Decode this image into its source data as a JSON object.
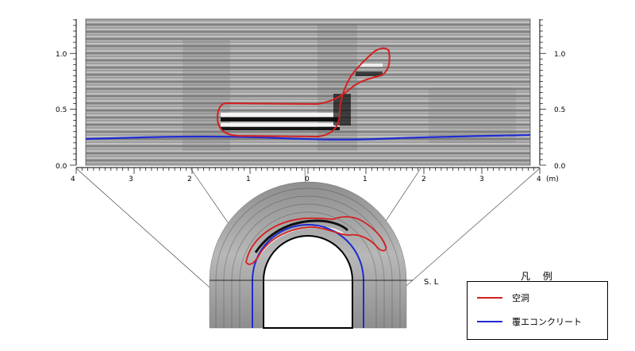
{
  "panel": {
    "y_ticks": [
      "0.0",
      "0.5",
      "1.0"
    ],
    "x_ticks": [
      "4",
      "3",
      "2",
      "1",
      "0",
      "1",
      "2",
      "3",
      "4"
    ],
    "x_unit": "(m)"
  },
  "tunnel": {
    "spring_line_label": "S. L"
  },
  "legend": {
    "title": "凡 例",
    "items": [
      {
        "label": "空洞",
        "color": "#d42020"
      },
      {
        "label": "覆エコンクリート",
        "color": "#1f2bd1"
      }
    ]
  }
}
